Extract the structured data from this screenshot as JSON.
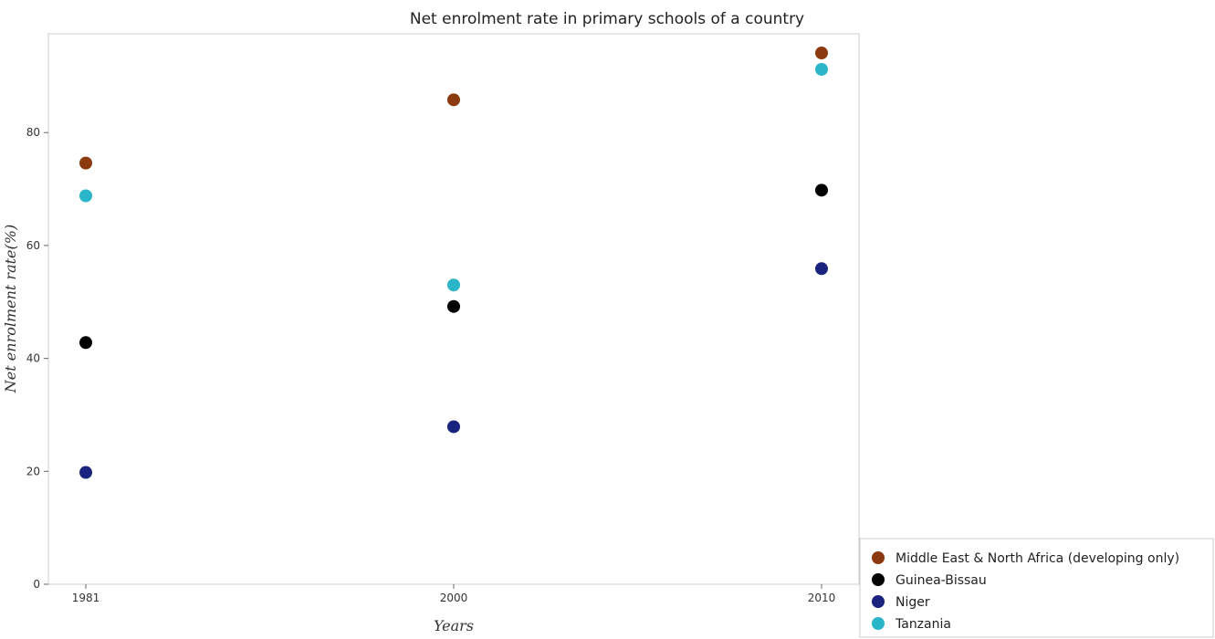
{
  "chart_data": {
    "type": "scatter",
    "title": "Net enrolment rate in primary schools of a country",
    "xlabel": "Years",
    "ylabel": "Net enrolment rate(%)",
    "categories": [
      "1981",
      "2000",
      "2010"
    ],
    "ylim": [
      0,
      97.5
    ],
    "yticks": [
      0,
      20,
      40,
      60,
      80
    ],
    "ytick_labels": [
      "0",
      "20",
      "40",
      "60",
      "80"
    ],
    "grid": false,
    "legend_position": "bottom-right",
    "series": [
      {
        "name": "Middle East & North Africa (developing only)",
        "color": "#8b3a0f",
        "values": [
          74.6,
          85.8,
          94.1
        ]
      },
      {
        "name": "Guinea-Bissau",
        "color": "#000000",
        "values": [
          42.8,
          49.2,
          69.8
        ]
      },
      {
        "name": "Niger",
        "color": "#1a237e",
        "values": [
          19.8,
          27.9,
          55.9
        ]
      },
      {
        "name": "Tanzania",
        "color": "#2bb5c8",
        "values": [
          68.8,
          53.0,
          91.2
        ]
      }
    ]
  }
}
